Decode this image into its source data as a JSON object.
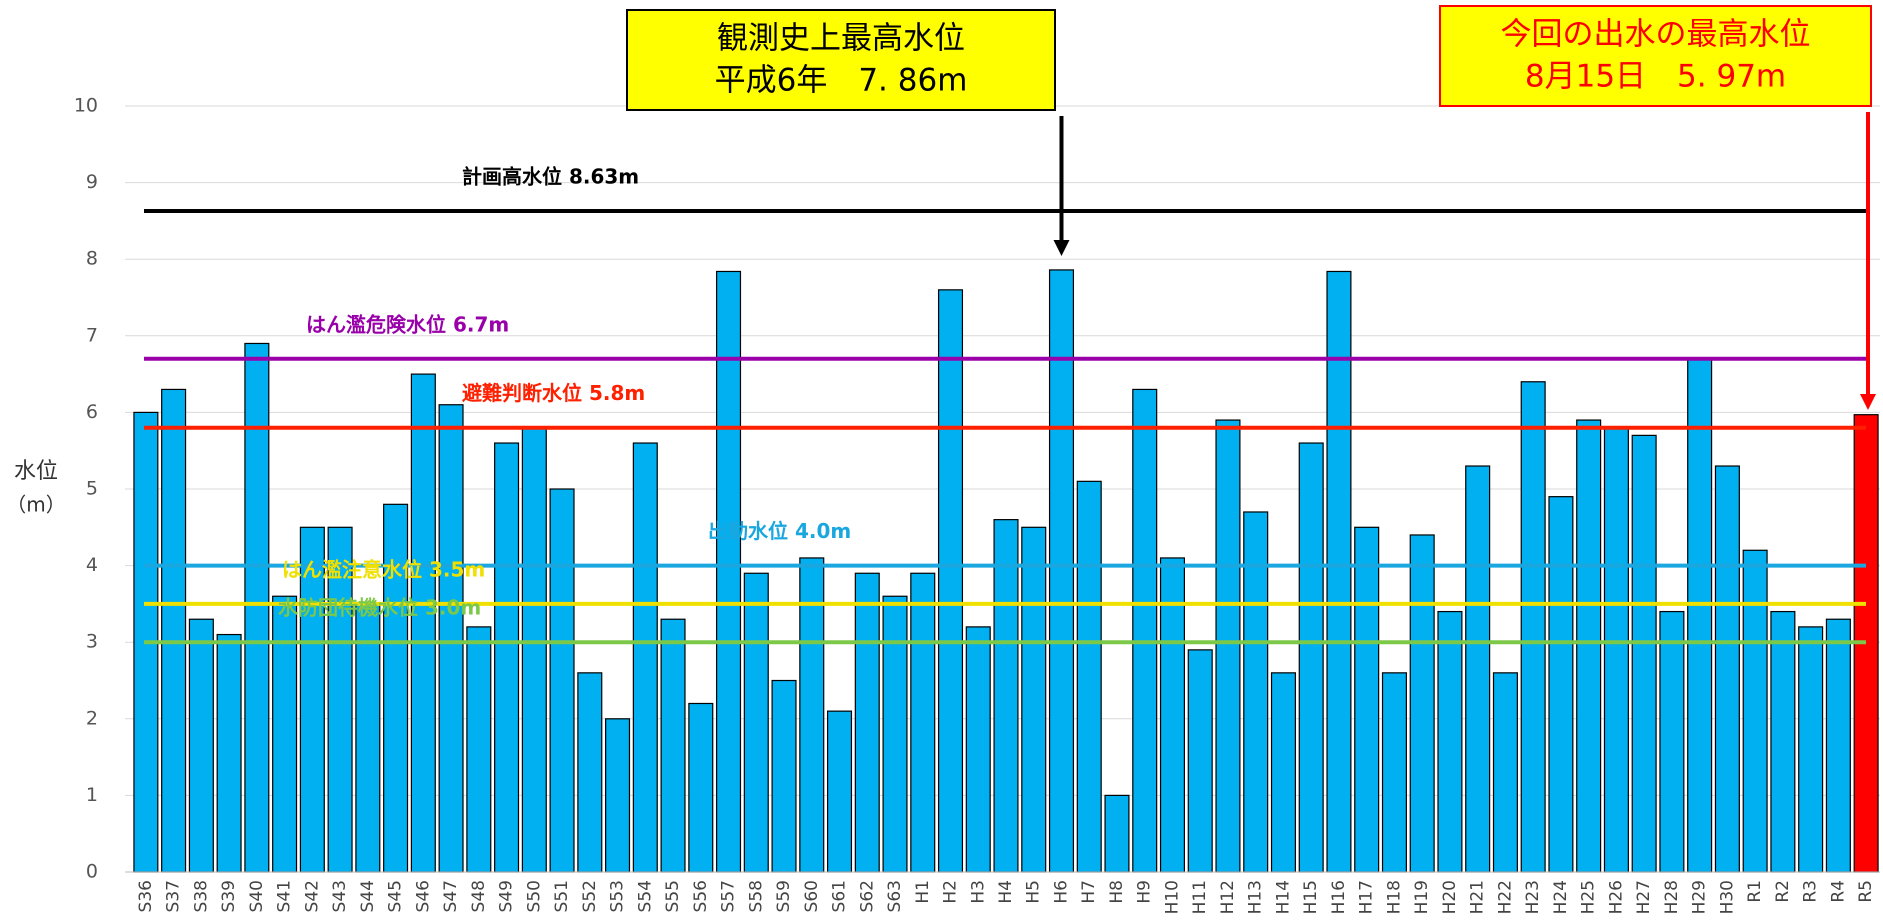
{
  "chart_data": {
    "type": "bar",
    "y_label": "水位",
    "y_unit": "（m）",
    "categories": [
      "S36",
      "S37",
      "S38",
      "S39",
      "S40",
      "S41",
      "S42",
      "S43",
      "S44",
      "S45",
      "S46",
      "S47",
      "S48",
      "S49",
      "S50",
      "S51",
      "S52",
      "S53",
      "S54",
      "S55",
      "S56",
      "S57",
      "S58",
      "S59",
      "S60",
      "S61",
      "S62",
      "S63",
      "H1",
      "H2",
      "H3",
      "H4",
      "H5",
      "H6",
      "H7",
      "H8",
      "H9",
      "H10",
      "H11",
      "H12",
      "H13",
      "H14",
      "H15",
      "H16",
      "H17",
      "H18",
      "H19",
      "H20",
      "H21",
      "H22",
      "H23",
      "H24",
      "H25",
      "H26",
      "H27",
      "H28",
      "H29",
      "H30",
      "R1",
      "R2",
      "R3",
      "R4",
      "R5"
    ],
    "values": [
      6.0,
      6.3,
      3.3,
      3.1,
      6.9,
      3.6,
      4.5,
      4.5,
      3.5,
      4.8,
      6.5,
      6.1,
      3.2,
      5.6,
      5.8,
      5.0,
      2.6,
      2.0,
      5.6,
      3.3,
      2.2,
      7.84,
      3.9,
      2.5,
      4.1,
      2.1,
      3.9,
      3.6,
      3.9,
      7.6,
      3.2,
      4.6,
      4.5,
      7.86,
      5.1,
      1.0,
      6.3,
      4.1,
      2.9,
      5.9,
      4.7,
      2.6,
      5.6,
      7.84,
      4.5,
      2.6,
      4.4,
      3.4,
      5.3,
      2.6,
      6.4,
      4.9,
      5.9,
      5.8,
      5.7,
      3.4,
      6.7,
      5.3,
      4.2,
      3.4,
      3.2,
      3.3,
      5.97
    ],
    "colors": [
      "#00b0f0",
      "#00b0f0",
      "#00b0f0",
      "#00b0f0",
      "#00b0f0",
      "#00b0f0",
      "#00b0f0",
      "#00b0f0",
      "#00b0f0",
      "#00b0f0",
      "#00b0f0",
      "#00b0f0",
      "#00b0f0",
      "#00b0f0",
      "#00b0f0",
      "#00b0f0",
      "#00b0f0",
      "#00b0f0",
      "#00b0f0",
      "#00b0f0",
      "#00b0f0",
      "#00b0f0",
      "#00b0f0",
      "#00b0f0",
      "#00b0f0",
      "#00b0f0",
      "#00b0f0",
      "#00b0f0",
      "#00b0f0",
      "#00b0f0",
      "#00b0f0",
      "#00b0f0",
      "#00b0f0",
      "#00b0f0",
      "#00b0f0",
      "#00b0f0",
      "#00b0f0",
      "#00b0f0",
      "#00b0f0",
      "#00b0f0",
      "#00b0f0",
      "#00b0f0",
      "#00b0f0",
      "#00b0f0",
      "#00b0f0",
      "#00b0f0",
      "#00b0f0",
      "#00b0f0",
      "#00b0f0",
      "#00b0f0",
      "#00b0f0",
      "#00b0f0",
      "#00b0f0",
      "#00b0f0",
      "#00b0f0",
      "#00b0f0",
      "#00b0f0",
      "#00b0f0",
      "#00b0f0",
      "#00b0f0",
      "#00b0f0",
      "#00b0f0",
      "#ff0000"
    ],
    "ylim": [
      0,
      10
    ],
    "yticks": [
      0,
      1,
      2,
      3,
      4,
      5,
      6,
      7,
      8,
      9,
      10
    ],
    "grid": true,
    "reference_lines": [
      {
        "label": "計画高水位 8.63m",
        "value": 8.63,
        "color": "#000000"
      },
      {
        "label": "はん濫危険水位 6.7m",
        "value": 6.7,
        "color": "#9900aa"
      },
      {
        "label": "避難判断水位 5.8m",
        "value": 5.8,
        "color": "#ff2000"
      },
      {
        "label": "出動水位 4.0m",
        "value": 4.0,
        "color": "#1aa7e0"
      },
      {
        "label": "はん濫注意水位 3.5m",
        "value": 3.5,
        "color": "#f0e000"
      },
      {
        "label": "水防団待機水位 3.0m",
        "value": 3.0,
        "color": "#7cc848"
      }
    ],
    "annotations": [
      {
        "lines": [
          "観測史上最高水位",
          "平成6年　7. 86m"
        ],
        "color": "#000000"
      },
      {
        "lines": [
          "今回の出水の最高水位",
          "8月15日　5. 97m"
        ],
        "color": "#ff0000"
      }
    ]
  }
}
